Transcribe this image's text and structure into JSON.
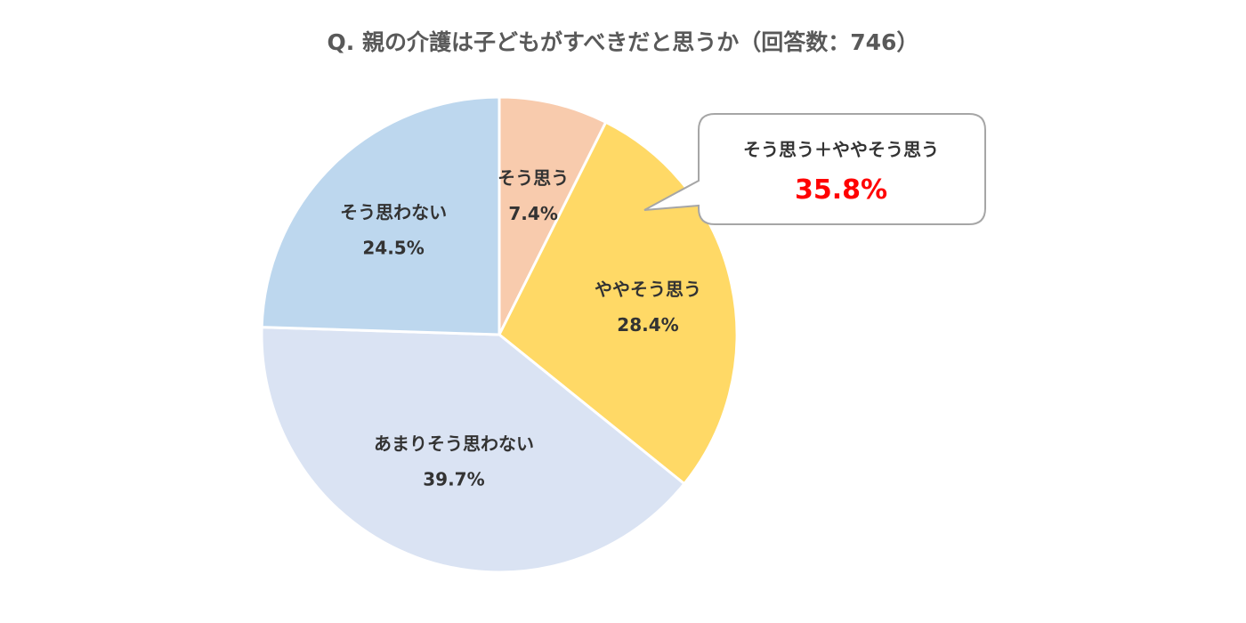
{
  "chart_data": {
    "type": "pie",
    "title": "Q. 親の介護は子どもがすべきだと思うか（回答数：746）",
    "start": "top",
    "direction": "clockwise",
    "slices": [
      {
        "label": "そう思う",
        "value": 7.4,
        "value_text": "7.4%",
        "color": "#F8CBAD"
      },
      {
        "label": "ややそう思う",
        "value": 28.4,
        "value_text": "28.4%",
        "color": "#FFD966"
      },
      {
        "label": "あまりそう思わない",
        "value": 39.7,
        "value_text": "39.7%",
        "color": "#DAE3F3"
      },
      {
        "label": "そう思わない",
        "value": 24.5,
        "value_text": "24.5%",
        "color": "#BDD7EE"
      }
    ],
    "annotation": {
      "label": "そう思う＋ややそう思う",
      "value_text": "35.8%",
      "value_color": "#FF0000"
    }
  }
}
